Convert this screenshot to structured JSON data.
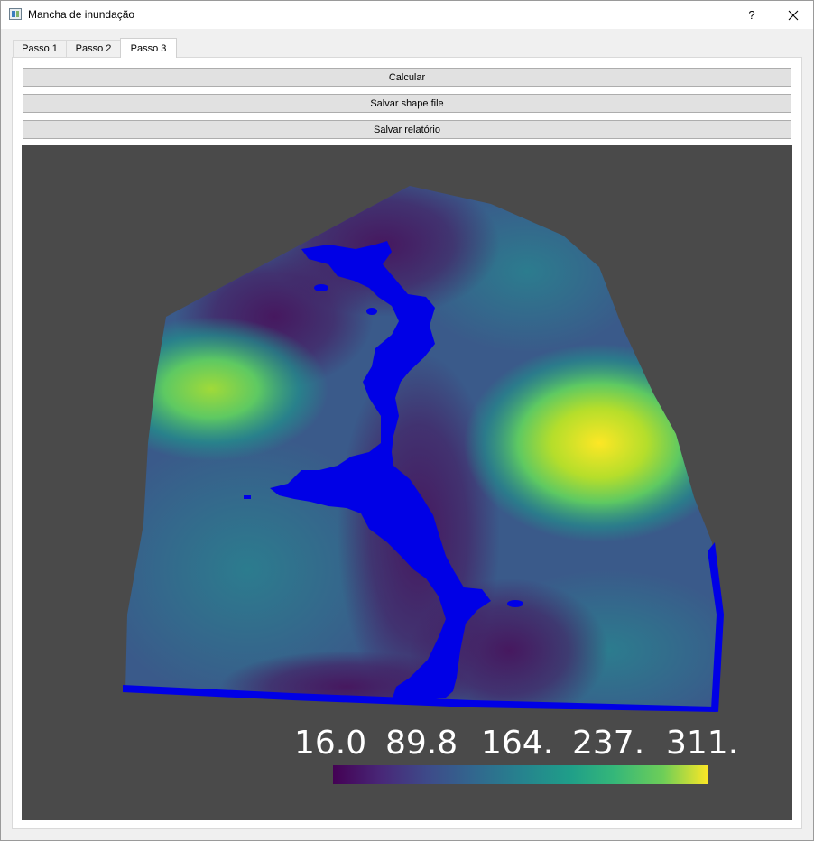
{
  "window": {
    "title": "Mancha de inundação",
    "help_label": "?"
  },
  "tabs": [
    {
      "label": "Passo 1",
      "active": false
    },
    {
      "label": "Passo 2",
      "active": false
    },
    {
      "label": "Passo 3",
      "active": true
    }
  ],
  "actions": {
    "calcular_label": "Calcular",
    "salvar_shape_label": "Salvar shape file",
    "salvar_relatorio_label": "Salvar relatório"
  },
  "colorbar": {
    "labels": [
      "16.0",
      "89.8",
      "164.",
      "237.",
      "311."
    ],
    "colors": [
      "#440154",
      "#3b528b",
      "#21918c",
      "#5ec962",
      "#fde725"
    ]
  },
  "flood_color": "#0000e6"
}
